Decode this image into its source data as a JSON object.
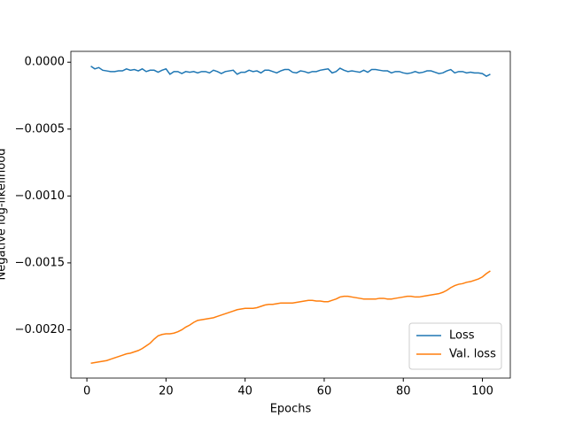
{
  "chart_data": {
    "type": "line",
    "xlabel": "Epochs",
    "ylabel": "Negative log-likelihood",
    "x": [
      1,
      2,
      3,
      4,
      5,
      6,
      7,
      8,
      9,
      10,
      11,
      12,
      13,
      14,
      15,
      16,
      17,
      18,
      19,
      20,
      21,
      22,
      23,
      24,
      25,
      26,
      27,
      28,
      29,
      30,
      31,
      32,
      33,
      34,
      35,
      36,
      37,
      38,
      39,
      40,
      41,
      42,
      43,
      44,
      45,
      46,
      47,
      48,
      49,
      50,
      51,
      52,
      53,
      54,
      55,
      56,
      57,
      58,
      59,
      60,
      61,
      62,
      63,
      64,
      65,
      66,
      67,
      68,
      69,
      70,
      71,
      72,
      73,
      74,
      75,
      76,
      77,
      78,
      79,
      80,
      81,
      82,
      83,
      84,
      85,
      86,
      87,
      88,
      89,
      90,
      91,
      92,
      93,
      94,
      95,
      96,
      97,
      98,
      99,
      100,
      101,
      102
    ],
    "series": [
      {
        "name": "Loss",
        "color": "#1f77b4",
        "values": [
          -3e-05,
          -5e-05,
          -4e-05,
          -6e-05,
          -6.5e-05,
          -7e-05,
          -7e-05,
          -6.5e-05,
          -6.5e-05,
          -5e-05,
          -6e-05,
          -5.5e-05,
          -6.5e-05,
          -5e-05,
          -7e-05,
          -6e-05,
          -6e-05,
          -7.5e-05,
          -6e-05,
          -5e-05,
          -9e-05,
          -7e-05,
          -7e-05,
          -8.5e-05,
          -7e-05,
          -7.5e-05,
          -7e-05,
          -8e-05,
          -7e-05,
          -7e-05,
          -8e-05,
          -6e-05,
          -7e-05,
          -8.5e-05,
          -7e-05,
          -6.5e-05,
          -6e-05,
          -9e-05,
          -7.5e-05,
          -7.5e-05,
          -6e-05,
          -7e-05,
          -6.5e-05,
          -8e-05,
          -6e-05,
          -6e-05,
          -7e-05,
          -8e-05,
          -6.5e-05,
          -5.5e-05,
          -5.5e-05,
          -7.5e-05,
          -8e-05,
          -6.5e-05,
          -7e-05,
          -8e-05,
          -7e-05,
          -7e-05,
          -6e-05,
          -5.5e-05,
          -5e-05,
          -8e-05,
          -7e-05,
          -4.5e-05,
          -6e-05,
          -7e-05,
          -6.5e-05,
          -7e-05,
          -7.5e-05,
          -6e-05,
          -7.5e-05,
          -5.5e-05,
          -5.5e-05,
          -6e-05,
          -6.5e-05,
          -6.5e-05,
          -8e-05,
          -7e-05,
          -7e-05,
          -8e-05,
          -8.5e-05,
          -8e-05,
          -7e-05,
          -8e-05,
          -7.5e-05,
          -6.5e-05,
          -6.5e-05,
          -7.5e-05,
          -8.5e-05,
          -8e-05,
          -6.5e-05,
          -5.5e-05,
          -8e-05,
          -7e-05,
          -7e-05,
          -8e-05,
          -7.5e-05,
          -8e-05,
          -8e-05,
          -8.5e-05,
          -0.000105,
          -9e-05
        ]
      },
      {
        "name": "Val. loss",
        "color": "#ff7f0e",
        "values": [
          -0.00225,
          -0.002245,
          -0.00224,
          -0.002235,
          -0.00223,
          -0.00222,
          -0.00221,
          -0.0022,
          -0.00219,
          -0.00218,
          -0.002175,
          -0.002165,
          -0.002155,
          -0.00214,
          -0.00212,
          -0.0021,
          -0.00207,
          -0.002045,
          -0.002035,
          -0.00203,
          -0.00203,
          -0.002025,
          -0.002015,
          -0.002,
          -0.00198,
          -0.001965,
          -0.001945,
          -0.00193,
          -0.001925,
          -0.00192,
          -0.001915,
          -0.00191,
          -0.0019,
          -0.00189,
          -0.00188,
          -0.00187,
          -0.00186,
          -0.00185,
          -0.001845,
          -0.00184,
          -0.00184,
          -0.00184,
          -0.001835,
          -0.001825,
          -0.001815,
          -0.00181,
          -0.00181,
          -0.001805,
          -0.0018,
          -0.0018,
          -0.0018,
          -0.0018,
          -0.001795,
          -0.00179,
          -0.001785,
          -0.00178,
          -0.00178,
          -0.001785,
          -0.001785,
          -0.00179,
          -0.00179,
          -0.00178,
          -0.00177,
          -0.001755,
          -0.00175,
          -0.00175,
          -0.001755,
          -0.00176,
          -0.001765,
          -0.00177,
          -0.00177,
          -0.00177,
          -0.00177,
          -0.001765,
          -0.001765,
          -0.00177,
          -0.00177,
          -0.001765,
          -0.00176,
          -0.001755,
          -0.00175,
          -0.00175,
          -0.001755,
          -0.001755,
          -0.00175,
          -0.001745,
          -0.00174,
          -0.001735,
          -0.00173,
          -0.00172,
          -0.001705,
          -0.001685,
          -0.00167,
          -0.00166,
          -0.001655,
          -0.001645,
          -0.00164,
          -0.00163,
          -0.00162,
          -0.001605,
          -0.00158,
          -0.00156
        ]
      }
    ],
    "xlim": [
      -4.05,
      107.05
    ],
    "ylim": [
      -0.002361,
      8.1e-05
    ],
    "xticks": [
      0,
      20,
      40,
      60,
      80,
      100
    ],
    "yticks": [
      {
        "value": 0,
        "label": "0.0000"
      },
      {
        "value": -0.0005,
        "label": "−0.0005"
      },
      {
        "value": -0.001,
        "label": "−0.0010"
      },
      {
        "value": -0.0015,
        "label": "−0.0015"
      },
      {
        "value": -0.002,
        "label": "−0.0020"
      }
    ],
    "legend": "lower right"
  }
}
